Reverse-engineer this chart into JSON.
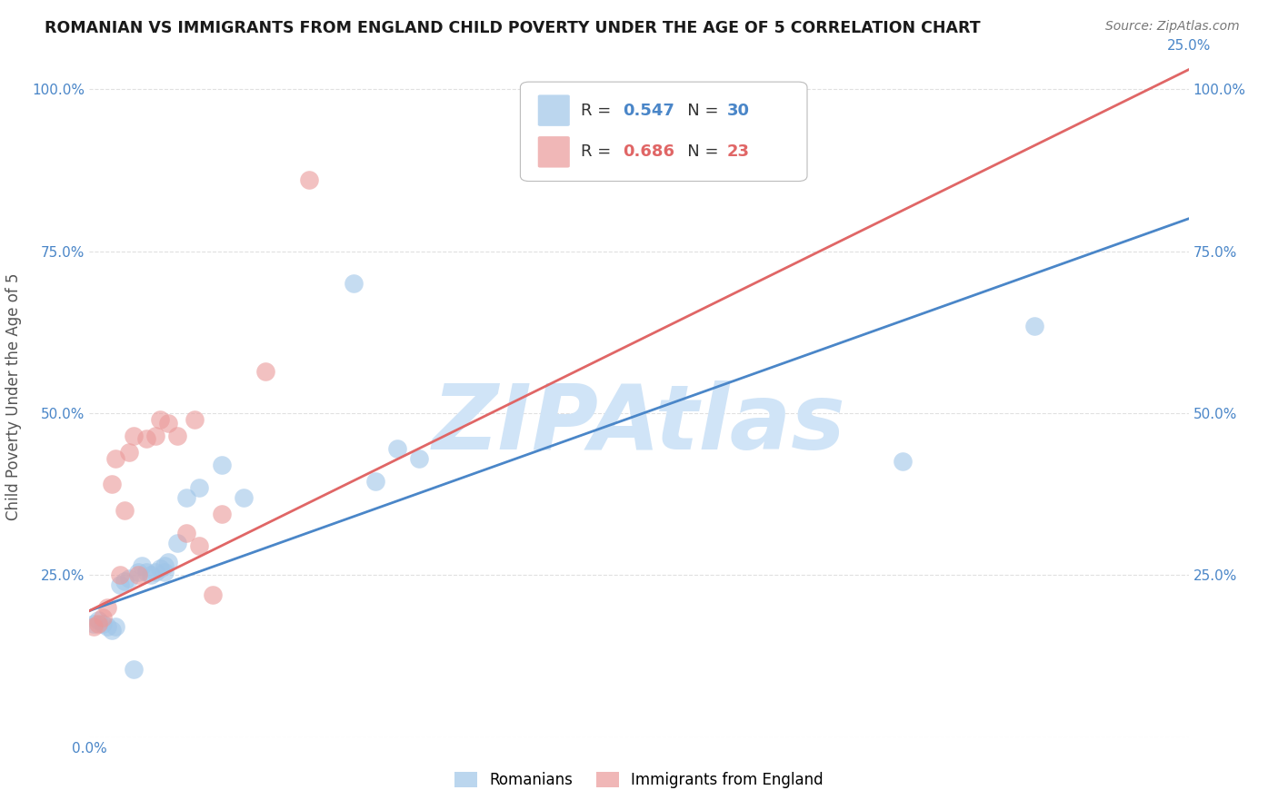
{
  "title": "ROMANIAN VS IMMIGRANTS FROM ENGLAND CHILD POVERTY UNDER THE AGE OF 5 CORRELATION CHART",
  "source": "Source: ZipAtlas.com",
  "ylabel": "Child Poverty Under the Age of 5",
  "x_min": 0.0,
  "x_max": 0.25,
  "y_min": 0.0,
  "y_max": 1.05,
  "x_ticks": [
    0.0,
    0.05,
    0.1,
    0.15,
    0.2,
    0.25
  ],
  "y_ticks": [
    0.0,
    0.25,
    0.5,
    0.75,
    1.0
  ],
  "y_tick_labels": [
    "",
    "25.0%",
    "50.0%",
    "75.0%",
    "100.0%"
  ],
  "legend1_label": "Romanians",
  "legend2_label": "Immigrants from England",
  "R1": 0.547,
  "N1": 30,
  "R2": 0.686,
  "N2": 23,
  "blue_color": "#9fc5e8",
  "pink_color": "#ea9999",
  "blue_line_color": "#4a86c8",
  "pink_line_color": "#e06666",
  "watermark": "ZIPAtlas",
  "watermark_color": "#d0e4f7",
  "background_color": "#ffffff",
  "grid_color": "#dddddd",
  "blue_line_x0": 0.0,
  "blue_line_y0": 0.195,
  "blue_line_x1": 0.25,
  "blue_line_y1": 0.8,
  "pink_line_x0": 0.0,
  "pink_line_y0": 0.195,
  "pink_line_x1": 0.25,
  "pink_line_y1": 1.03,
  "blue_scatter_x": [
    0.001,
    0.002,
    0.003,
    0.004,
    0.005,
    0.006,
    0.007,
    0.008,
    0.009,
    0.01,
    0.011,
    0.012,
    0.013,
    0.014,
    0.015,
    0.016,
    0.017,
    0.017,
    0.018,
    0.02,
    0.022,
    0.025,
    0.03,
    0.035,
    0.06,
    0.065,
    0.07,
    0.075,
    0.185,
    0.215
  ],
  "blue_scatter_y": [
    0.175,
    0.18,
    0.175,
    0.17,
    0.165,
    0.17,
    0.235,
    0.24,
    0.245,
    0.105,
    0.255,
    0.265,
    0.255,
    0.25,
    0.255,
    0.26,
    0.265,
    0.255,
    0.27,
    0.3,
    0.37,
    0.385,
    0.42,
    0.37,
    0.7,
    0.395,
    0.445,
    0.43,
    0.425,
    0.635
  ],
  "pink_scatter_x": [
    0.001,
    0.002,
    0.003,
    0.004,
    0.005,
    0.006,
    0.007,
    0.008,
    0.009,
    0.01,
    0.011,
    0.013,
    0.015,
    0.016,
    0.018,
    0.02,
    0.022,
    0.024,
    0.025,
    0.028,
    0.03,
    0.04,
    0.05
  ],
  "pink_scatter_y": [
    0.17,
    0.175,
    0.185,
    0.2,
    0.39,
    0.43,
    0.25,
    0.35,
    0.44,
    0.465,
    0.25,
    0.46,
    0.465,
    0.49,
    0.485,
    0.465,
    0.315,
    0.49,
    0.295,
    0.22,
    0.345,
    0.565,
    0.86
  ]
}
